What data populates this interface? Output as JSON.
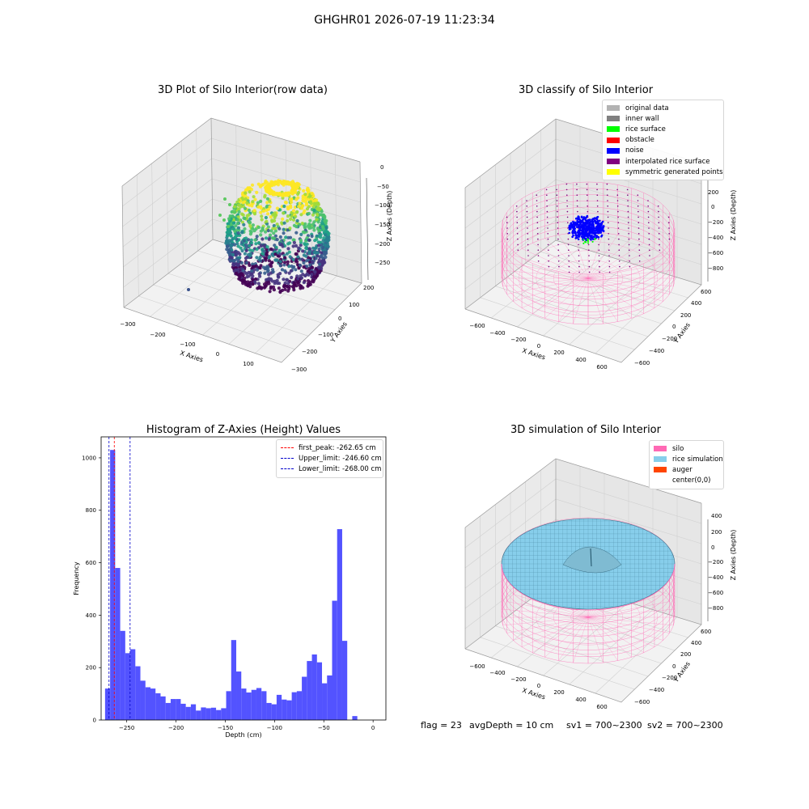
{
  "suptitle": "GHGHR01 2026-07-19 11:23:34",
  "footer": {
    "flag": "flag = 23",
    "avg_depth": "avgDepth = 10 cm",
    "sv1": "sv1 = 700~2300",
    "sv2": "sv2 = 700~2300"
  },
  "chart_data": [
    {
      "type": "scatter",
      "title": "3D Plot of Silo Interior(row data)",
      "projection": "3d",
      "xlabel": "X Axies",
      "ylabel": "Y Axies",
      "zlabel": "Z Axies (Depth)",
      "x_ticks": [
        "−300",
        "−200",
        "−100",
        "0",
        "100"
      ],
      "y_ticks": [
        "−300",
        "−200",
        "−100",
        "0",
        "100",
        "200"
      ],
      "z_ticks": [
        "0",
        "−50",
        "−100",
        "−150",
        "−200",
        "−250"
      ],
      "colormap": "viridis",
      "zlim": [
        -280,
        0
      ]
    },
    {
      "type": "scatter",
      "title": "3D classify of Silo Interior",
      "projection": "3d",
      "xlabel": "X Axies",
      "ylabel": "Y Axies",
      "zlabel": "Z Axies (Depth)",
      "x_ticks": [
        "−600",
        "−400",
        "−200",
        "0",
        "200",
        "400",
        "600"
      ],
      "y_ticks": [
        "−600",
        "−400",
        "−200",
        "0",
        "200",
        "400",
        "600"
      ],
      "z_ticks": [
        "200",
        "0",
        "−200",
        "−400",
        "−600",
        "−800"
      ],
      "legend": [
        {
          "label": "original data",
          "color": "#b3b3b3"
        },
        {
          "label": "inner wall",
          "color": "#808080"
        },
        {
          "label": "rice surface",
          "color": "#00ff00"
        },
        {
          "label": "obstacle",
          "color": "#ff0000"
        },
        {
          "label": "noise",
          "color": "#0000ff"
        },
        {
          "label": "interpolated rice surface",
          "color": "#800080"
        },
        {
          "label": "symmetric generated points",
          "color": "#ffff00"
        }
      ],
      "legend_position": "top-right"
    },
    {
      "type": "bar",
      "title": "Histogram of Z-Axies (Height) Values",
      "xlabel": "Depth (cm)",
      "ylabel": "Frequency",
      "xlim": [
        -276,
        13
      ],
      "ylim": [
        0,
        1080
      ],
      "x_ticks": [
        -250,
        -200,
        -150,
        -100,
        -50,
        0
      ],
      "y_ticks": [
        0,
        200,
        400,
        600,
        800,
        1000
      ],
      "bar_color": "#4d4dff",
      "bin_start": -272,
      "bin_width": 5.12,
      "values": [
        120,
        1030,
        580,
        340,
        255,
        270,
        205,
        150,
        125,
        120,
        102,
        90,
        65,
        80,
        80,
        62,
        50,
        60,
        36,
        48,
        45,
        47,
        38,
        45,
        110,
        305,
        185,
        120,
        105,
        115,
        122,
        110,
        65,
        60,
        96,
        78,
        75,
        106,
        110,
        165,
        225,
        250,
        220,
        140,
        170,
        455,
        728,
        302,
        0,
        15
      ],
      "vlines": [
        {
          "label": "first_peak: -262.65 cm",
          "x": -262.65,
          "color": "#ff0000"
        },
        {
          "label": "Upper_limit: -246.60 cm",
          "x": -246.6,
          "color": "#0000cc"
        },
        {
          "label": "Lower_limit: -268.00 cm",
          "x": -268.0,
          "color": "#0000cc"
        }
      ],
      "legend_position": "top-right"
    },
    {
      "type": "scatter",
      "title": "3D simulation of Silo Interior",
      "projection": "3d",
      "xlabel": "X Axies",
      "ylabel": "Y Axies",
      "zlabel": "Z Axies (Depth)",
      "x_ticks": [
        "−600",
        "−400",
        "−200",
        "0",
        "200",
        "400",
        "600"
      ],
      "y_ticks": [
        "−600",
        "−400",
        "−200",
        "0",
        "200",
        "400",
        "600"
      ],
      "z_ticks": [
        "400",
        "200",
        "0",
        "−200",
        "−400",
        "−600",
        "−800"
      ],
      "legend": [
        {
          "label": "silo",
          "color": "#ff69b4"
        },
        {
          "label": "rice simulation",
          "color": "#87ceeb"
        },
        {
          "label": "auger",
          "color": "#ff4500"
        },
        {
          "label": "center(0,0)",
          "color": ""
        }
      ],
      "legend_position": "top-right"
    }
  ]
}
